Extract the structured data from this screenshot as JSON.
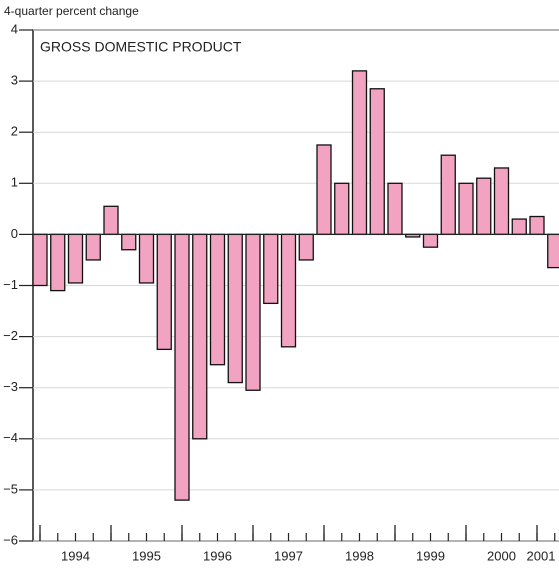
{
  "chart_data": {
    "type": "bar",
    "title": "GROSS DOMESTIC PRODUCT",
    "y_axis_label": "4-quarter percent change",
    "x_labels": [
      "1994",
      "1995",
      "1996",
      "1997",
      "1998",
      "1999",
      "2000",
      "2001"
    ],
    "values": [
      -1.0,
      -1.1,
      -0.95,
      -0.5,
      0.55,
      -0.3,
      -0.95,
      -2.25,
      -5.2,
      -4.0,
      -2.55,
      -2.9,
      -3.05,
      -1.35,
      -2.2,
      -0.5,
      1.75,
      1.0,
      3.2,
      2.85,
      1.0,
      -0.05,
      -0.25,
      1.55,
      1.0,
      1.1,
      1.3,
      0.3,
      0.35,
      -0.65
    ],
    "color": "#f2a3c2",
    "ylim": [
      -6,
      4
    ],
    "yticks": [
      {
        "value": -6,
        "label": "−6"
      },
      {
        "value": -5,
        "label": "−5"
      },
      {
        "value": -4,
        "label": "−4"
      },
      {
        "value": -3,
        "label": "−3"
      },
      {
        "value": -2,
        "label": "−2"
      },
      {
        "value": -1,
        "label": "−1"
      },
      0,
      1,
      2,
      3,
      4
    ],
    "grid": true
  }
}
